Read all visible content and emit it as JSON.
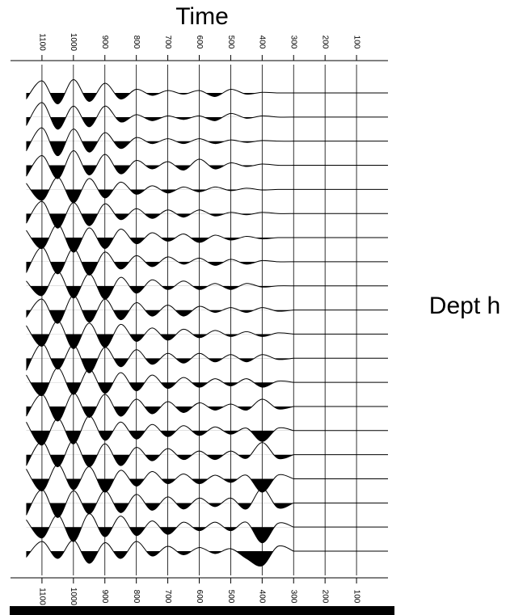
{
  "chart_data": {
    "type": "wiggle",
    "title": "Time",
    "axis_label": "Dept h",
    "xlim": [
      1200,
      0
    ],
    "xticks": [
      1100,
      1000,
      900,
      800,
      700,
      600,
      500,
      400,
      300,
      200,
      100
    ],
    "x": [
      1150,
      1100,
      1050,
      1000,
      950,
      900,
      850,
      800,
      750,
      700,
      650,
      600,
      550,
      500,
      450,
      400,
      350,
      300
    ],
    "traces": [
      [
        -0.5,
        1.0,
        -0.9,
        1.1,
        -0.7,
        0.8,
        -0.5,
        0.3,
        -0.2,
        0.2,
        -0.1,
        0.2,
        -0.3,
        0.3,
        -0.1,
        0.05,
        0,
        0
      ],
      [
        -0.7,
        1.2,
        -1.0,
        0.9,
        -0.8,
        0.9,
        -0.4,
        0.2,
        -0.3,
        0.1,
        -0.2,
        0.1,
        -0.3,
        0.3,
        -0.1,
        0.1,
        0,
        0
      ],
      [
        -0.8,
        1.1,
        -1.2,
        1.0,
        -0.9,
        0.7,
        -0.6,
        0.3,
        -0.2,
        0.2,
        -0.2,
        0.2,
        -0.2,
        0.1,
        -0.1,
        0.05,
        0,
        0
      ],
      [
        -0.9,
        0.8,
        -1.1,
        1.2,
        -0.8,
        0.9,
        -0.7,
        0.4,
        -0.3,
        0.3,
        -0.4,
        0.5,
        -0.3,
        0.2,
        -0.1,
        0.1,
        0,
        0
      ],
      [
        0.5,
        -0.9,
        1.0,
        -1.1,
        0.9,
        -0.7,
        0.6,
        -0.4,
        0.3,
        -0.3,
        0.2,
        -0.2,
        0.2,
        -0.1,
        0.1,
        -0.05,
        0,
        0
      ],
      [
        -0.8,
        1.0,
        -1.2,
        0.9,
        -1.0,
        0.8,
        -0.5,
        0.4,
        -0.4,
        0.3,
        -0.3,
        0.3,
        -0.2,
        0.1,
        -0.1,
        0.1,
        0,
        0
      ],
      [
        0.6,
        -0.9,
        1.1,
        -1.2,
        0.8,
        -0.9,
        0.7,
        -0.5,
        0.4,
        -0.3,
        0.3,
        -0.4,
        0.2,
        -0.2,
        0.1,
        -0.1,
        0,
        0
      ],
      [
        -0.9,
        1.2,
        -1.0,
        1.1,
        -1.1,
        0.8,
        -0.6,
        0.5,
        -0.4,
        0.4,
        -0.2,
        0.3,
        -0.3,
        0.2,
        -0.2,
        0.1,
        0,
        0
      ],
      [
        0.4,
        -0.8,
        1.2,
        -1.0,
        1.0,
        -1.1,
        0.7,
        -0.6,
        0.5,
        -0.3,
        0.4,
        -0.3,
        0.2,
        -0.3,
        0.2,
        -0.1,
        0,
        0
      ],
      [
        -0.6,
        0.9,
        -1.1,
        1.2,
        -1.0,
        0.9,
        -0.8,
        0.6,
        -0.5,
        0.4,
        -0.5,
        0.3,
        -0.2,
        0.2,
        -0.2,
        0.2,
        -0.1,
        0
      ],
      [
        0.7,
        -1.0,
        1.1,
        -1.2,
        0.9,
        -1.1,
        0.8,
        -0.6,
        0.5,
        -0.5,
        0.4,
        -0.3,
        0.3,
        -0.2,
        0.2,
        -0.2,
        0.1,
        0
      ],
      [
        -1.0,
        1.2,
        -0.9,
        1.1,
        -1.2,
        0.9,
        -0.7,
        0.7,
        -0.5,
        0.4,
        -0.4,
        0.4,
        -0.3,
        0.3,
        -0.3,
        0.3,
        -0.1,
        0
      ],
      [
        0.6,
        -1.1,
        1.2,
        -1.0,
        1.1,
        -0.9,
        0.8,
        -0.7,
        0.6,
        -0.5,
        0.4,
        -0.4,
        0.3,
        -0.3,
        0.3,
        -0.4,
        0.1,
        0
      ],
      [
        -0.8,
        1.0,
        -1.2,
        1.1,
        -0.9,
        1.0,
        -0.8,
        0.6,
        -0.6,
        0.4,
        -0.5,
        0.3,
        -0.3,
        0.2,
        -0.3,
        0.6,
        -0.2,
        0
      ],
      [
        0.7,
        -1.2,
        1.0,
        -1.1,
        1.2,
        -0.8,
        0.7,
        -0.7,
        0.5,
        -0.5,
        0.4,
        -0.4,
        0.3,
        -0.3,
        0.2,
        -0.9,
        0.2,
        0
      ],
      [
        -0.9,
        1.1,
        -1.0,
        1.2,
        -1.0,
        0.9,
        -0.9,
        0.6,
        -0.5,
        0.5,
        -0.4,
        0.3,
        -0.4,
        0.3,
        -0.3,
        1.0,
        -0.3,
        0
      ],
      [
        0.8,
        -1.0,
        1.2,
        -0.9,
        1.0,
        -1.1,
        0.7,
        -0.6,
        0.6,
        -0.4,
        0.4,
        -0.4,
        0.3,
        -0.3,
        0.3,
        -1.1,
        0.3,
        0
      ],
      [
        -1.0,
        1.1,
        -1.2,
        1.0,
        -0.9,
        1.0,
        -0.8,
        0.7,
        -0.6,
        0.5,
        -0.5,
        0.4,
        -0.3,
        0.4,
        -0.5,
        1.2,
        -0.4,
        0
      ],
      [
        0.6,
        -0.9,
        1.0,
        -1.2,
        1.1,
        -0.8,
        0.9,
        -0.7,
        0.5,
        -0.6,
        0.4,
        -0.3,
        0.4,
        -0.3,
        0.4,
        -1.3,
        0.3,
        0
      ],
      [
        -0.5,
        0.8,
        -0.6,
        0.9,
        -1.0,
        0.7,
        -0.6,
        0.8,
        -0.4,
        0.4,
        -0.3,
        0.3,
        -0.2,
        0.2,
        -0.6,
        -1.2,
        0.4,
        0
      ]
    ]
  }
}
